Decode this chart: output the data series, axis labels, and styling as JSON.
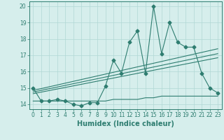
{
  "x": [
    0,
    1,
    2,
    3,
    4,
    5,
    6,
    7,
    8,
    9,
    10,
    11,
    12,
    13,
    14,
    15,
    16,
    17,
    18,
    19,
    20,
    21,
    22,
    23
  ],
  "y_main": [
    15.0,
    14.2,
    14.2,
    14.3,
    14.2,
    14.0,
    13.9,
    14.1,
    14.1,
    15.1,
    16.7,
    15.9,
    17.8,
    18.5,
    15.9,
    20.0,
    17.1,
    19.0,
    17.8,
    17.5,
    17.5,
    15.9,
    15.0,
    14.7
  ],
  "y_low": [
    14.2,
    14.2,
    14.2,
    14.2,
    14.2,
    14.2,
    14.2,
    14.2,
    14.2,
    14.2,
    14.3,
    14.3,
    14.3,
    14.3,
    14.4,
    14.4,
    14.5,
    14.5,
    14.5,
    14.5,
    14.5,
    14.5,
    14.5,
    14.5
  ],
  "trend1_x": [
    0,
    23
  ],
  "trend1_y": [
    14.65,
    16.85
  ],
  "trend2_x": [
    0,
    23
  ],
  "trend2_y": [
    14.75,
    17.1
  ],
  "trend3_x": [
    0,
    23
  ],
  "trend3_y": [
    14.85,
    17.4
  ],
  "line_color": "#2e7d70",
  "bg_color": "#d6eeec",
  "grid_color": "#b0d8d4",
  "xlim": [
    -0.5,
    23.5
  ],
  "ylim": [
    13.7,
    20.3
  ],
  "yticks": [
    14,
    15,
    16,
    17,
    18,
    19,
    20
  ],
  "xticks": [
    0,
    1,
    2,
    3,
    4,
    5,
    6,
    7,
    8,
    9,
    10,
    11,
    12,
    13,
    14,
    15,
    16,
    17,
    18,
    19,
    20,
    21,
    22,
    23
  ],
  "xlabel": "Humidex (Indice chaleur)",
  "marker_size": 2.5,
  "line_width": 0.8,
  "xlabel_fontsize": 7,
  "tick_fontsize": 5.5
}
